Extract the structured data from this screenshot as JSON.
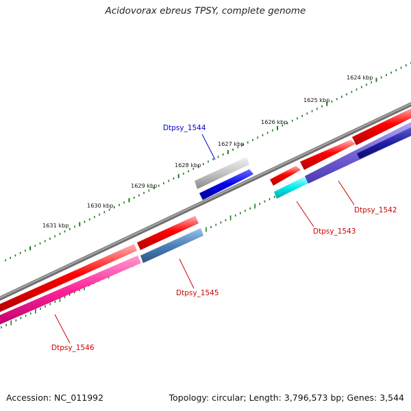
{
  "title": "Acidovorax ebreus TPSY, complete genome",
  "footer": {
    "accession": "Accession: NC_011992",
    "summary": "Topology: circular; Length: 3,796,573 bp; Genes: 3,544"
  },
  "ruler": [
    {
      "label": "1624 kbp"
    },
    {
      "label": "1625 kbp"
    },
    {
      "label": "1626 kbp"
    },
    {
      "label": "1627 kbp"
    },
    {
      "label": "1628 kbp"
    },
    {
      "label": "1629 kbp"
    },
    {
      "label": "1630 kbp"
    },
    {
      "label": "1631 kbp"
    }
  ],
  "genes": [
    {
      "name": "Dtpsy_1542",
      "color": "#cc0000"
    },
    {
      "name": "Dtpsy_1543",
      "color": "#cc0000"
    },
    {
      "name": "Dtpsy_1544",
      "color": "#0000cc"
    },
    {
      "name": "Dtpsy_1545",
      "color": "#cc0000"
    },
    {
      "name": "Dtpsy_1546",
      "color": "#cc0000"
    }
  ],
  "colors": {
    "backbone": "#888888",
    "forward_cds": "#ff0000",
    "tick": "#1a7a1a",
    "grey_feature": "#bbbbbb",
    "blue_feature": "#0000ee",
    "cyan_feature": "#00e5e5",
    "purple_feature": "#7a66dd",
    "navy_feature": "#1a1a99",
    "steel_feature": "#4a7fb5",
    "magenta_feature": "#ff2299"
  }
}
